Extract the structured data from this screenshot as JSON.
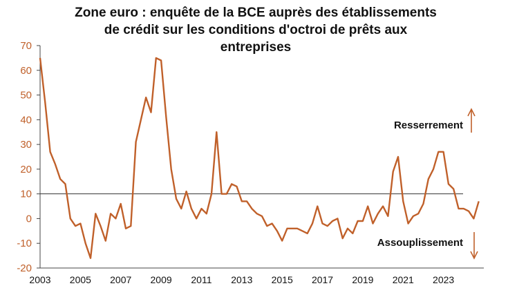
{
  "chart_data": {
    "type": "line",
    "title_lines": [
      "Zone euro : enquête de la BCE auprès des établissements",
      "de crédit sur les conditions d'octroi de prêts aux",
      "entreprises"
    ],
    "xlabel": "",
    "ylabel": "",
    "ylim": [
      -20,
      70
    ],
    "yticks": [
      -20,
      -10,
      0,
      10,
      20,
      30,
      40,
      50,
      60,
      70
    ],
    "xlim": [
      2003,
      2025
    ],
    "xticks": [
      2003,
      2005,
      2007,
      2009,
      2011,
      2013,
      2015,
      2017,
      2019,
      2021,
      2023
    ],
    "reference_line": 10,
    "grid": false,
    "series": [
      {
        "color": "#c0602a",
        "x": [
          2003.0,
          2003.25,
          2003.5,
          2003.75,
          2004.0,
          2004.25,
          2004.5,
          2004.75,
          2005.0,
          2005.25,
          2005.5,
          2005.75,
          2006.0,
          2006.25,
          2006.5,
          2006.75,
          2007.0,
          2007.25,
          2007.5,
          2007.75,
          2008.0,
          2008.25,
          2008.5,
          2008.75,
          2009.0,
          2009.25,
          2009.5,
          2009.75,
          2010.0,
          2010.25,
          2010.5,
          2010.75,
          2011.0,
          2011.25,
          2011.5,
          2011.75,
          2012.0,
          2012.25,
          2012.5,
          2012.75,
          2013.0,
          2013.25,
          2013.5,
          2013.75,
          2014.0,
          2014.25,
          2014.5,
          2014.75,
          2015.0,
          2015.25,
          2015.5,
          2015.75,
          2016.0,
          2016.25,
          2016.5,
          2016.75,
          2017.0,
          2017.25,
          2017.5,
          2017.75,
          2018.0,
          2018.25,
          2018.5,
          2018.75,
          2019.0,
          2019.25,
          2019.5,
          2019.75,
          2020.0,
          2020.25,
          2020.5,
          2020.75,
          2021.0,
          2021.25,
          2021.5,
          2021.75,
          2022.0,
          2022.25,
          2022.5,
          2022.75,
          2023.0,
          2023.25,
          2023.5,
          2023.75,
          2024.0,
          2024.25,
          2024.5,
          2024.75
        ],
        "y": [
          65,
          47,
          27,
          22,
          16,
          14,
          0,
          -3,
          -2,
          -10,
          -16,
          2,
          -3,
          -9,
          2,
          0,
          6,
          -4,
          -3,
          31,
          40,
          49,
          43,
          65,
          64,
          41,
          20,
          8,
          4,
          11,
          4,
          0,
          4,
          2,
          10,
          35,
          10,
          10,
          14,
          13,
          7,
          7,
          4,
          2,
          1,
          -3,
          -2,
          -5,
          -9,
          -4,
          -4,
          -4,
          -5,
          -6,
          -2,
          5,
          -2,
          -3,
          -1,
          0,
          -8,
          -4,
          -6,
          -1,
          -1,
          5,
          -2,
          2,
          5,
          1,
          19,
          25,
          7,
          -2,
          1,
          2,
          6,
          16,
          20,
          27,
          27,
          14,
          12,
          4,
          4,
          3,
          0,
          7
        ]
      }
    ],
    "annotations": [
      {
        "text": "Resserrement",
        "arrow": "up"
      },
      {
        "text": "Assouplissement",
        "arrow": "down"
      }
    ]
  }
}
